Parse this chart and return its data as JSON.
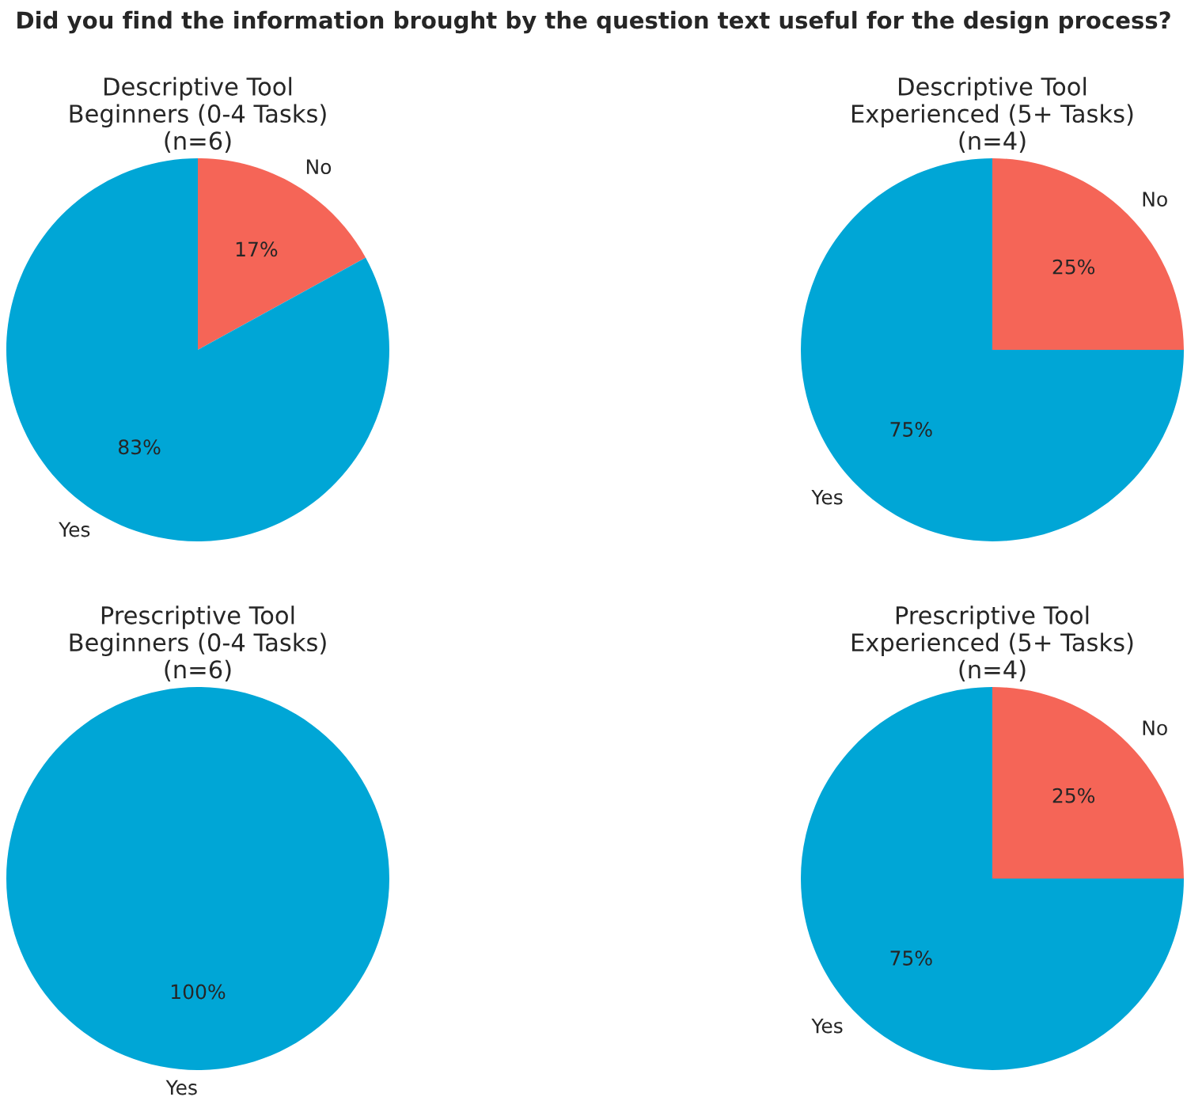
{
  "chart_data": [
    {
      "type": "pie",
      "title": "Descriptive Tool\nBeginners (0-4 Tasks)\n(n=6)",
      "categories": [
        "No",
        "Yes"
      ],
      "values": [
        17,
        83
      ],
      "value_labels": [
        "17%",
        "83%"
      ],
      "colors": [
        "#f56557",
        "#00a6d6"
      ],
      "annotations": [
        "Did you find the information brought by the question text useful for the design process?"
      ]
    },
    {
      "type": "pie",
      "title": "Descriptive Tool\nExperienced (5+ Tasks)\n(n=4)",
      "categories": [
        "No",
        "Yes"
      ],
      "values": [
        25,
        75
      ],
      "value_labels": [
        "25%",
        "75%"
      ],
      "colors": [
        "#f56557",
        "#00a6d6"
      ]
    },
    {
      "type": "pie",
      "title": "Prescriptive Tool\nBeginners (0-4 Tasks)\n(n=6)",
      "categories": [
        "Yes"
      ],
      "values": [
        100
      ],
      "value_labels": [
        "100%"
      ],
      "colors": [
        "#00a6d6"
      ]
    },
    {
      "type": "pie",
      "title": "Prescriptive Tool\nExperienced (5+ Tasks)\n(n=4)",
      "categories": [
        "No",
        "Yes"
      ],
      "values": [
        25,
        75
      ],
      "value_labels": [
        "25%",
        "75%"
      ],
      "colors": [
        "#f56557",
        "#00a6d6"
      ]
    }
  ]
}
